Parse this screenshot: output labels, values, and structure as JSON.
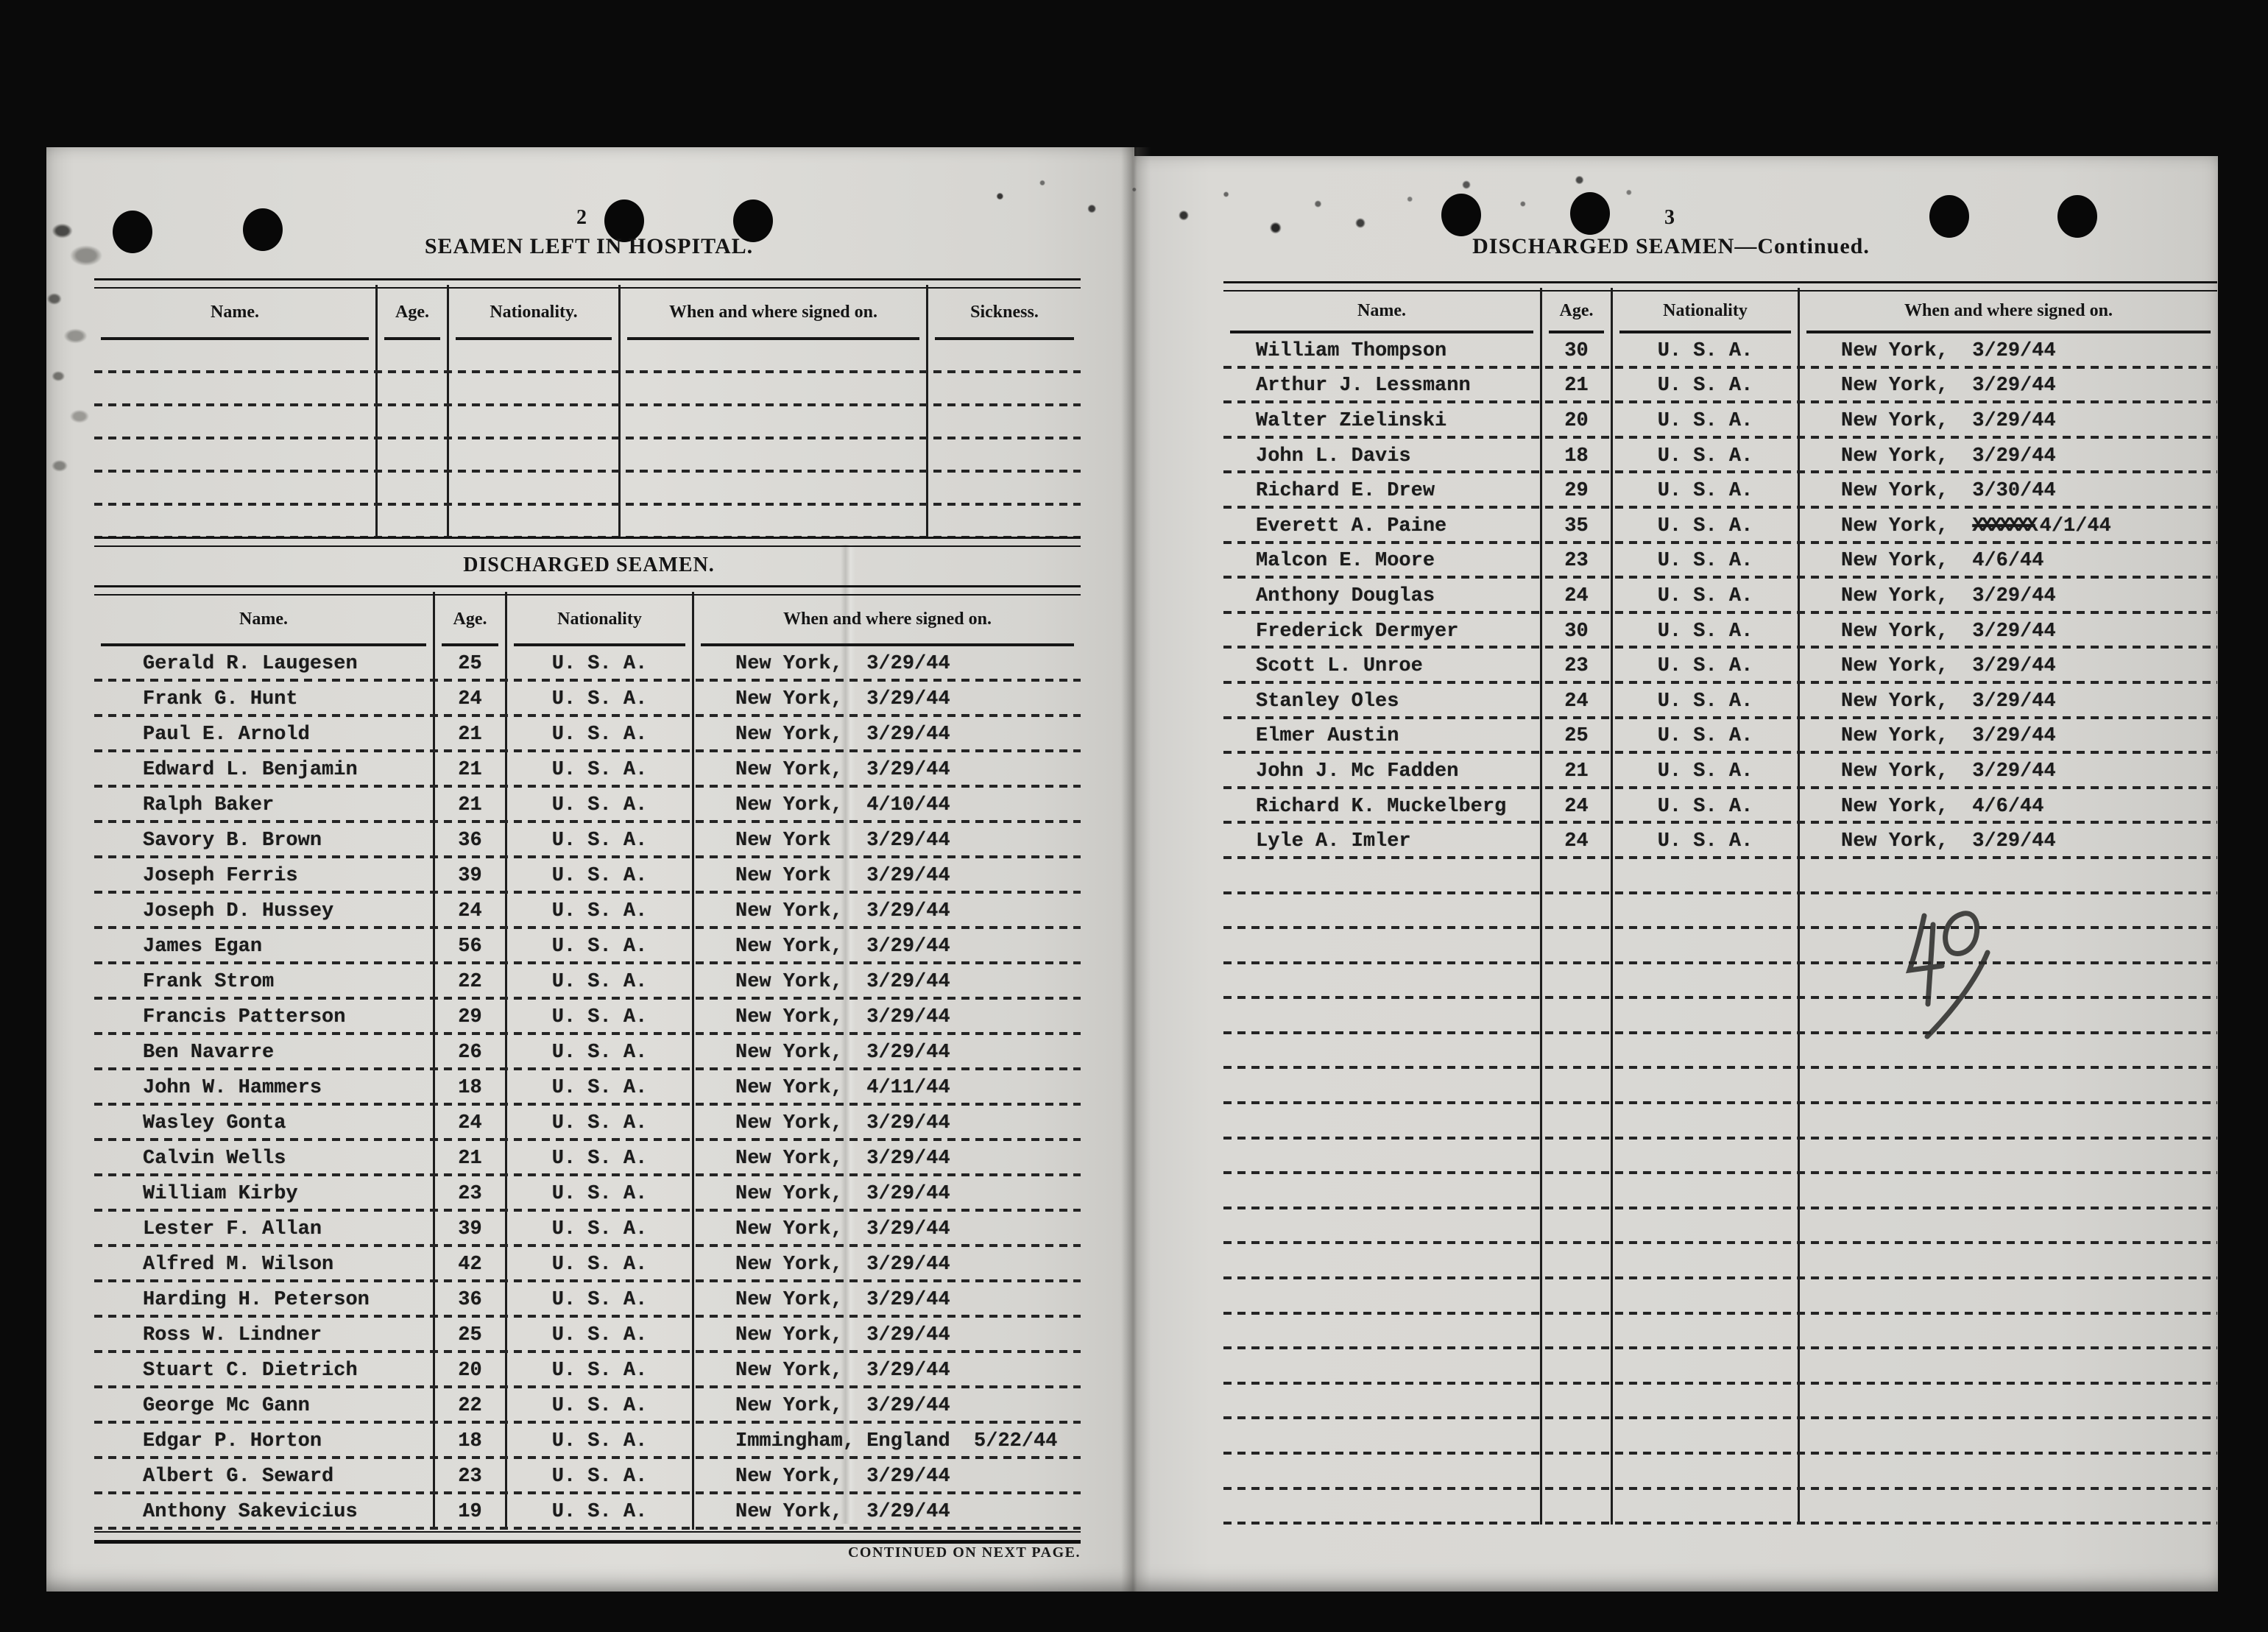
{
  "document": {
    "left_page": {
      "page_number": "2",
      "hospital": {
        "title": "SEAMEN LEFT IN HOSPITAL.",
        "columns": [
          "Name.",
          "Age.",
          "Nationality.",
          "When and where signed on.",
          "Sickness."
        ],
        "empty_rows": 6
      },
      "discharged": {
        "title": "DISCHARGED SEAMEN.",
        "columns": [
          "Name.",
          "Age.",
          "Nationality",
          "When and where signed on."
        ],
        "rows": [
          {
            "name": "Gerald R. Laugesen",
            "age": "25",
            "nationality": "U. S. A.",
            "signed_on": "New York,  3/29/44"
          },
          {
            "name": "Frank G. Hunt",
            "age": "24",
            "nationality": "U. S. A.",
            "signed_on": "New York,  3/29/44"
          },
          {
            "name": "Paul E. Arnold",
            "age": "21",
            "nationality": "U. S. A.",
            "signed_on": "New York,  3/29/44"
          },
          {
            "name": "Edward L. Benjamin",
            "age": "21",
            "nationality": "U. S. A.",
            "signed_on": "New York,  3/29/44"
          },
          {
            "name": "Ralph Baker",
            "age": "21",
            "nationality": "U. S. A.",
            "signed_on": "New York,  4/10/44"
          },
          {
            "name": "Savory B. Brown",
            "age": "36",
            "nationality": "U. S. A.",
            "signed_on": "New York   3/29/44"
          },
          {
            "name": "Joseph Ferris",
            "age": "39",
            "nationality": "U. S. A.",
            "signed_on": "New York   3/29/44"
          },
          {
            "name": "Joseph D. Hussey",
            "age": "24",
            "nationality": "U. S. A.",
            "signed_on": "New York,  3/29/44"
          },
          {
            "name": "James Egan",
            "age": "56",
            "nationality": "U. S. A.",
            "signed_on": "New York,  3/29/44"
          },
          {
            "name": "Frank Strom",
            "age": "22",
            "nationality": "U. S. A.",
            "signed_on": "New York,  3/29/44"
          },
          {
            "name": "Francis Patterson",
            "age": "29",
            "nationality": "U. S. A.",
            "signed_on": "New York,  3/29/44"
          },
          {
            "name": "Ben Navarre",
            "age": "26",
            "nationality": "U. S. A.",
            "signed_on": "New York,  3/29/44"
          },
          {
            "name": "John W. Hammers",
            "age": "18",
            "nationality": "U. S. A.",
            "signed_on": "New York,  4/11/44"
          },
          {
            "name": "Wasley Gonta",
            "age": "24",
            "nationality": "U. S. A.",
            "signed_on": "New York,  3/29/44"
          },
          {
            "name": "Calvin Wells",
            "age": "21",
            "nationality": "U. S. A.",
            "signed_on": "New York,  3/29/44"
          },
          {
            "name": "William Kirby",
            "age": "23",
            "nationality": "U. S. A.",
            "signed_on": "New York,  3/29/44"
          },
          {
            "name": "Lester F. Allan",
            "age": "39",
            "nationality": "U. S. A.",
            "signed_on": "New York,  3/29/44"
          },
          {
            "name": "Alfred M. Wilson",
            "age": "42",
            "nationality": "U. S. A.",
            "signed_on": "New York,  3/29/44"
          },
          {
            "name": "Harding H. Peterson",
            "age": "36",
            "nationality": "U. S. A.",
            "signed_on": "New York,  3/29/44"
          },
          {
            "name": "Ross W. Lindner",
            "age": "25",
            "nationality": "U. S. A.",
            "signed_on": "New York,  3/29/44"
          },
          {
            "name": "Stuart C. Dietrich",
            "age": "20",
            "nationality": "U. S. A.",
            "signed_on": "New York,  3/29/44"
          },
          {
            "name": "George Mc Gann",
            "age": "22",
            "nationality": "U. S. A.",
            "signed_on": "New York,  3/29/44"
          },
          {
            "name": "Edgar P. Horton",
            "age": "18",
            "nationality": "U. S. A.",
            "signed_on": "Immingham, England  5/22/44"
          },
          {
            "name": "Albert G. Seward",
            "age": "23",
            "nationality": "U. S. A.",
            "signed_on": "New York,  3/29/44"
          },
          {
            "name": "Anthony Sakevicius",
            "age": "19",
            "nationality": "U. S. A.",
            "signed_on": "New York,  3/29/44"
          }
        ],
        "footer": "CONTINUED ON NEXT PAGE."
      }
    },
    "right_page": {
      "page_number": "3",
      "title": "DISCHARGED SEAMEN—Continued.",
      "columns": [
        "Name.",
        "Age.",
        "Nationality",
        "When and where signed on."
      ],
      "rows": [
        {
          "name": "William Thompson",
          "age": "30",
          "nationality": "U. S. A.",
          "signed_on": "New York,  3/29/44"
        },
        {
          "name": "Arthur J. Lessmann",
          "age": "21",
          "nationality": "U. S. A.",
          "signed_on": "New York,  3/29/44"
        },
        {
          "name": "Walter Zielinski",
          "age": "20",
          "nationality": "U. S. A.",
          "signed_on": "New York,  3/29/44"
        },
        {
          "name": "John L. Davis",
          "age": "18",
          "nationality": "U. S. A.",
          "signed_on": "New York,  3/29/44"
        },
        {
          "name": "Richard E. Drew",
          "age": "29",
          "nationality": "U. S. A.",
          "signed_on": "New York,  3/30/44"
        },
        {
          "name": "Everett A. Paine",
          "age": "35",
          "nationality": "U. S. A.",
          "signed_on": "New York,  ",
          "struck": "XXXXXXX",
          "signed_on_after": "4/1/44"
        },
        {
          "name": "Malcon E. Moore",
          "age": "23",
          "nationality": "U. S. A.",
          "signed_on": "New York,  4/6/44"
        },
        {
          "name": "Anthony Douglas",
          "age": "24",
          "nationality": "U. S. A.",
          "signed_on": "New York,  3/29/44"
        },
        {
          "name": "Frederick Dermyer",
          "age": "30",
          "nationality": "U. S. A.",
          "signed_on": "New York,  3/29/44"
        },
        {
          "name": "Scott L. Unroe",
          "age": "23",
          "nationality": "U. S. A.",
          "signed_on": "New York,  3/29/44"
        },
        {
          "name": "Stanley Oles",
          "age": "24",
          "nationality": "U. S. A.",
          "signed_on": "New York,  3/29/44"
        },
        {
          "name": "Elmer Austin",
          "age": "25",
          "nationality": "U. S. A.",
          "signed_on": "New York,  3/29/44"
        },
        {
          "name": "John J. Mc Fadden",
          "age": "21",
          "nationality": "U. S. A.",
          "signed_on": "New York,  3/29/44"
        },
        {
          "name": "Richard K. Muckelberg",
          "age": "24",
          "nationality": "U. S. A.",
          "signed_on": "New York,  4/6/44"
        },
        {
          "name": "Lyle A. Imler",
          "age": "24",
          "nationality": "U. S. A.",
          "signed_on": "New York,  3/29/44"
        }
      ],
      "empty_rows": 19,
      "handwritten_note": "40"
    }
  }
}
